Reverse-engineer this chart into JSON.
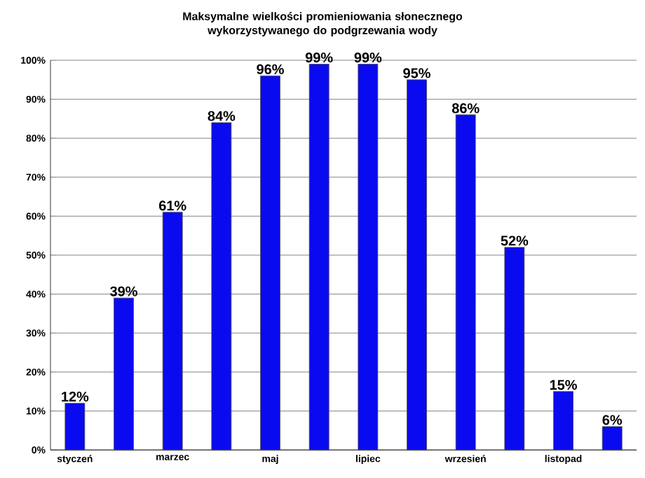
{
  "chart_data": {
    "type": "bar",
    "title": "Maksymalne wielkości promieniowania słonecznego wykorzystywanego do podgrzewania wody",
    "categories": [
      "styczeń",
      null,
      "marzec",
      null,
      "maj",
      null,
      "lipiec",
      null,
      "wrzesień",
      null,
      "listopad",
      null
    ],
    "values": [
      12,
      39,
      61,
      84,
      96,
      99,
      99,
      95,
      86,
      52,
      15,
      6
    ],
    "value_labels": [
      "12%",
      "39%",
      "61%",
      "84%",
      "96%",
      "99%",
      "99%",
      "95%",
      "86%",
      "52%",
      "15%",
      "6%"
    ],
    "color": "#0a0af0",
    "ylim": [
      0,
      100
    ],
    "yticks": [
      {
        "value": 0,
        "label": "0%"
      },
      {
        "value": 10,
        "label": "10%"
      },
      {
        "value": 20,
        "label": "20%"
      },
      {
        "value": 30,
        "label": "30%"
      },
      {
        "value": 40,
        "label": "40%"
      },
      {
        "value": 50,
        "label": "50%"
      },
      {
        "value": 60,
        "label": "60%"
      },
      {
        "value": 70,
        "label": "70%"
      },
      {
        "value": 80,
        "label": "80%"
      },
      {
        "value": 90,
        "label": "90%"
      },
      {
        "value": 100,
        "label": "100%"
      }
    ],
    "grid": "y"
  }
}
